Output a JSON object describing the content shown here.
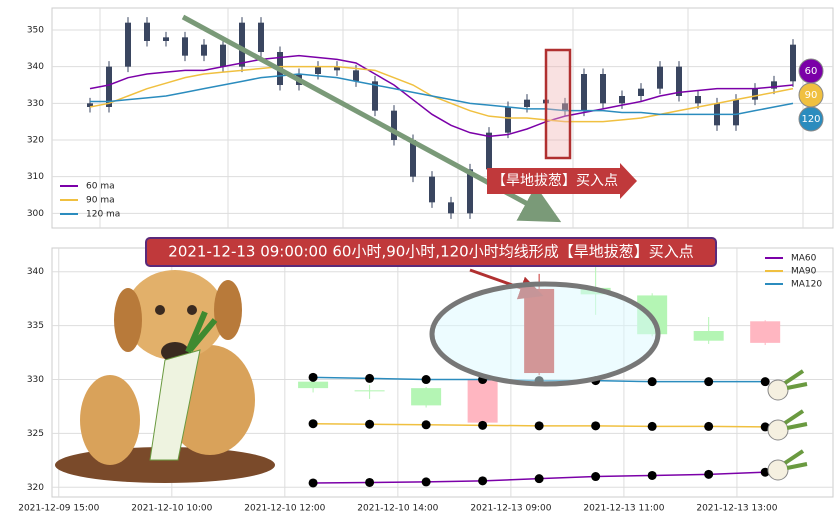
{
  "chart_data": [
    {
      "type": "candlestick",
      "open": [
        330,
        329,
        340,
        352,
        347,
        348,
        343,
        346,
        340,
        352,
        344,
        335,
        338,
        340,
        339,
        336,
        328,
        320,
        310,
        303,
        300,
        312,
        322,
        329,
        331,
        330,
        328,
        338,
        330,
        332,
        334,
        340,
        332,
        330,
        324,
        331,
        334,
        336
      ],
      "high": [
        331.5,
        341.5,
        353.5,
        353.5,
        349.5,
        349.5,
        347.5,
        347.5,
        353.5,
        353.5,
        345.5,
        339.5,
        341.5,
        341.5,
        340.5,
        337.5,
        329.5,
        321.5,
        311.5,
        304.5,
        313.5,
        323.5,
        330.5,
        332.5,
        332.5,
        331.5,
        339.5,
        339.5,
        333.5,
        335.5,
        341.5,
        341.5,
        333.5,
        331.5,
        332.5,
        335.5,
        337.5,
        347.5
      ],
      "low": [
        327.5,
        327.5,
        338.5,
        345.5,
        345.5,
        341.5,
        341.5,
        338.5,
        338.5,
        342.5,
        333.5,
        333.5,
        336.5,
        337.5,
        334.5,
        326.5,
        318.5,
        308.5,
        301.5,
        298.5,
        298.5,
        310.5,
        320.5,
        327.5,
        328.5,
        326.5,
        326.5,
        328.5,
        328.5,
        330.5,
        332.5,
        330.5,
        328.5,
        322.5,
        322.5,
        329.5,
        332.5,
        334.5
      ],
      "close": [
        329,
        340,
        352,
        347,
        348,
        343,
        346,
        340,
        352,
        344,
        335,
        338,
        340,
        339,
        336,
        328,
        320,
        310,
        303,
        300,
        312,
        322,
        329,
        331,
        330,
        328,
        338,
        330,
        332,
        334,
        340,
        332,
        330,
        324,
        331,
        334,
        336,
        346
      ],
      "candle_color": "#3a4660",
      "series": [
        {
          "name": "60 ma",
          "color": "#7b00a8",
          "values": [
            334,
            335,
            337,
            338,
            338.5,
            339,
            339,
            340,
            341,
            342,
            342.5,
            343,
            342.5,
            342,
            341,
            338,
            335,
            331,
            327,
            324,
            322,
            321,
            321.5,
            323,
            325,
            326.5,
            327.5,
            328.5,
            329.5,
            330.5,
            332,
            333,
            333.5,
            334,
            334,
            334,
            334.5,
            335
          ]
        },
        {
          "name": "90 ma",
          "color": "#f0c040",
          "values": [
            329,
            330,
            332,
            334,
            335.5,
            337,
            338,
            338.5,
            339,
            339.5,
            340,
            340,
            340,
            340,
            339.5,
            339,
            337,
            335,
            332,
            330,
            328,
            326.5,
            326,
            326,
            325.5,
            325,
            325,
            325,
            325.5,
            326,
            327,
            328,
            329,
            330,
            331,
            332,
            333,
            334
          ]
        },
        {
          "name": "120 ma",
          "color": "#2b8cbe",
          "values": [
            330.5,
            330.5,
            331,
            331.5,
            332,
            333,
            334,
            335,
            336,
            337,
            337.5,
            338,
            337.5,
            337,
            336,
            335,
            334,
            333,
            332,
            331,
            330,
            329.5,
            329,
            328.5,
            328.5,
            328,
            328,
            328,
            327.5,
            327.5,
            327,
            327,
            327,
            327,
            327,
            328,
            329,
            330
          ]
        }
      ],
      "ylim": [
        296,
        356
      ],
      "yticks": [
        300,
        310,
        320,
        330,
        340,
        350
      ],
      "grid": true,
      "legend": "lower left",
      "annotation": "【旱地拔葱】买入点",
      "badges": [
        {
          "label": "60",
          "color": "#7b00a8"
        },
        {
          "label": "90",
          "color": "#f0c040"
        },
        {
          "label": "120",
          "color": "#2b8cbe"
        }
      ]
    },
    {
      "type": "candlestick",
      "title": "2021-12-13 09:00:00 60小时,90小时,120小时均线形成【旱地拔葱】买入点",
      "x": [
        4.5,
        5.5,
        6.5,
        7.5,
        8.5,
        9.5,
        10.5,
        11.5,
        12.5
      ],
      "open": [
        329.8,
        329.0,
        329.2,
        326.0,
        330.6,
        338.5,
        337.8,
        334.5,
        333.4
      ],
      "high": [
        329.9,
        329.5,
        329.3,
        330.2,
        339.8,
        341,
        338,
        335.8,
        335.5
      ],
      "low": [
        328.8,
        328.2,
        327.4,
        325.8,
        330.4,
        336,
        334,
        333.3,
        333.2
      ],
      "close": [
        329.2,
        328.9,
        327.6,
        330.0,
        338.4,
        337.9,
        334.2,
        333.6,
        335.4
      ],
      "up_color": "#ffb6c1",
      "down_color": "#b4f5b4",
      "highlight_color": "#c8322e",
      "highlight_index": 4,
      "series": [
        {
          "name": "MA60",
          "color": "#7b00a8",
          "values": [
            320.4,
            320.45,
            320.5,
            320.6,
            320.8,
            321.0,
            321.1,
            321.2,
            321.4
          ]
        },
        {
          "name": "MA90",
          "color": "#f0c040",
          "values": [
            325.9,
            325.85,
            325.8,
            325.75,
            325.7,
            325.7,
            325.65,
            325.65,
            325.6
          ]
        },
        {
          "name": "MA120",
          "color": "#2b8cbe",
          "values": [
            330.2,
            330.1,
            330.0,
            330.0,
            329.9,
            329.9,
            329.8,
            329.8,
            329.8
          ]
        }
      ],
      "xlim": [
        -0.12,
        13.7
      ],
      "xticks": [
        {
          "value": 0,
          "label": "2021-12-09 15:00"
        },
        {
          "value": 2,
          "label": "2021-12-10 10:00"
        },
        {
          "value": 4,
          "label": "2021-12-10 12:00"
        },
        {
          "value": 6,
          "label": "2021-12-10 14:00"
        },
        {
          "value": 8,
          "label": "2021-12-13 09:00"
        },
        {
          "value": 10,
          "label": "2021-12-13 11:00"
        },
        {
          "value": 12,
          "label": "2021-12-13 13:00"
        }
      ],
      "ylim": [
        319.1,
        342.2
      ],
      "yticks": [
        320,
        325,
        330,
        335,
        340
      ],
      "grid": true,
      "legend": "upper right"
    }
  ]
}
